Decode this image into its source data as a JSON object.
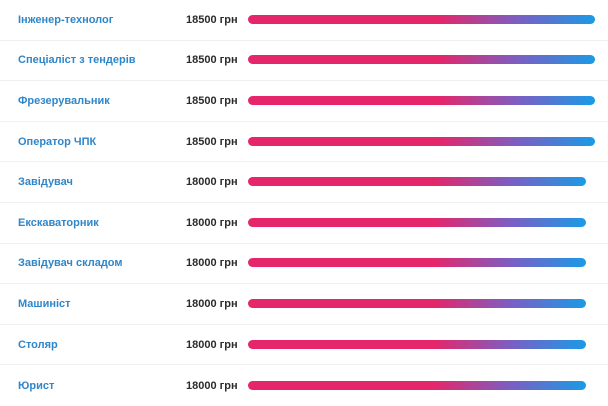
{
  "vacancies": [
    {
      "title": "Інженер-технолог",
      "salary": "18500 грн",
      "value": 18500
    },
    {
      "title": "Спеціаліст з тендерів",
      "salary": "18500 грн",
      "value": 18500
    },
    {
      "title": "Фрезерувальник",
      "salary": "18500 грн",
      "value": 18500
    },
    {
      "title": "Оператор ЧПК",
      "salary": "18500 грн",
      "value": 18500
    },
    {
      "title": "Завідувач",
      "salary": "18000 грн",
      "value": 18000
    },
    {
      "title": "Екскаваторник",
      "salary": "18000 грн",
      "value": 18000
    },
    {
      "title": "Завідувач складом",
      "salary": "18000 грн",
      "value": 18000
    },
    {
      "title": "Машиніст",
      "salary": "18000 грн",
      "value": 18000
    },
    {
      "title": "Столяр",
      "salary": "18000 грн",
      "value": 18000
    },
    {
      "title": "Юрист",
      "salary": "18000 грн",
      "value": 18000
    }
  ],
  "max_value": 18500,
  "colors": {
    "title": "#2f86c8",
    "bar_start": "#e5266a",
    "bar_end": "#1a9be6"
  }
}
